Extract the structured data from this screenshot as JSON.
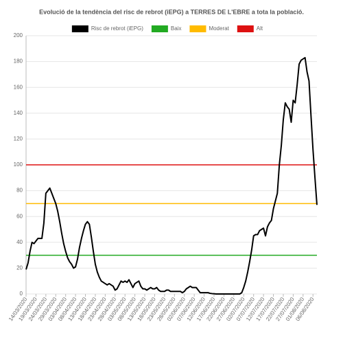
{
  "chart_data": {
    "type": "line",
    "title": "Evolució de la tendència del risc de rebrot (iEPG) a TERRES DE L'EBRE a tota la població.",
    "categories": [
      "14/03/2020",
      null,
      null,
      null,
      null,
      "19/03/2020",
      null,
      null,
      null,
      null,
      "24/03/2020",
      null,
      null,
      null,
      null,
      "29/03/2020",
      null,
      null,
      null,
      null,
      "03/04/2020",
      null,
      null,
      null,
      null,
      "08/04/2020",
      null,
      null,
      null,
      null,
      "13/04/2020",
      null,
      null,
      null,
      null,
      "18/04/2020",
      null,
      null,
      null,
      null,
      "23/04/2020",
      null,
      null,
      null,
      null,
      "28/04/2020",
      null,
      null,
      null,
      null,
      "03/05/2020",
      null,
      null,
      null,
      null,
      "08/05/2020",
      null,
      null,
      null,
      null,
      "13/05/2020",
      null,
      null,
      null,
      null,
      "18/05/2020",
      null,
      null,
      null,
      null,
      "23/05/2020",
      null,
      null,
      null,
      null,
      "28/05/2020",
      null,
      null,
      null,
      null,
      "02/06/2020",
      null,
      null,
      null,
      null,
      "07/06/2020",
      null,
      null,
      null,
      null,
      "12/06/2020",
      null,
      null,
      null,
      null,
      "17/06/2020",
      null,
      null,
      null,
      null,
      "22/06/2020",
      null,
      null,
      null,
      null,
      "27/06/2020",
      null,
      null,
      null,
      null,
      "02/07/2020",
      null,
      null,
      null,
      null,
      "07/07/2020",
      null,
      null,
      null,
      null,
      "12/07/2020",
      null,
      null,
      null,
      null,
      "17/07/2020",
      null,
      null,
      null,
      null,
      "22/07/2020",
      null,
      null,
      null,
      null,
      "27/07/2020",
      null,
      null,
      null,
      null,
      "01/08/2020",
      null,
      null,
      null,
      null,
      "06/08/2020",
      null,
      null
    ],
    "series": [
      {
        "name": "Risc de rebrot (iEPG)",
        "color": "#000000",
        "values": [
          19,
          24,
          33,
          40,
          39,
          41,
          43,
          43,
          43,
          55,
          78,
          80,
          82,
          78,
          74,
          70,
          64,
          56,
          47,
          39,
          33,
          28,
          25,
          23,
          20,
          21,
          27,
          36,
          43,
          49,
          54,
          56,
          54,
          44,
          33,
          23,
          17,
          13,
          10,
          9,
          8,
          7,
          8,
          7,
          6,
          3,
          4,
          7,
          10,
          9,
          10,
          9,
          11,
          8,
          5,
          8,
          9,
          10,
          6,
          4,
          4,
          3,
          4,
          5,
          4,
          4,
          5,
          3,
          2,
          2,
          2,
          3,
          3,
          2,
          2,
          2,
          2,
          2,
          2,
          1,
          2,
          4,
          5,
          6,
          5,
          5,
          5,
          3,
          1,
          1,
          1,
          1,
          1,
          0.5,
          0.3,
          0.2,
          0,
          0,
          0,
          0,
          0,
          0,
          0,
          0,
          0,
          0,
          0,
          0,
          0,
          1,
          5,
          10,
          17,
          25,
          34,
          45,
          46,
          46,
          49,
          50,
          51,
          45,
          52,
          55,
          57,
          66,
          72,
          78,
          100,
          115,
          135,
          148,
          145,
          143,
          133,
          150,
          148,
          162,
          178,
          181,
          182,
          183,
          172,
          165,
          138,
          112,
          90,
          69
        ]
      }
    ],
    "thresholds": [
      {
        "name": "Baix",
        "color": "#22aa22",
        "value": 30
      },
      {
        "name": "Moderat",
        "color": "#ffbb00",
        "value": 70
      },
      {
        "name": "Alt",
        "color": "#dd1111",
        "value": 100
      }
    ],
    "ylim": [
      0,
      200
    ],
    "yticks": [
      0,
      20,
      40,
      60,
      80,
      100,
      120,
      140,
      160,
      180,
      200
    ],
    "grid": true
  }
}
